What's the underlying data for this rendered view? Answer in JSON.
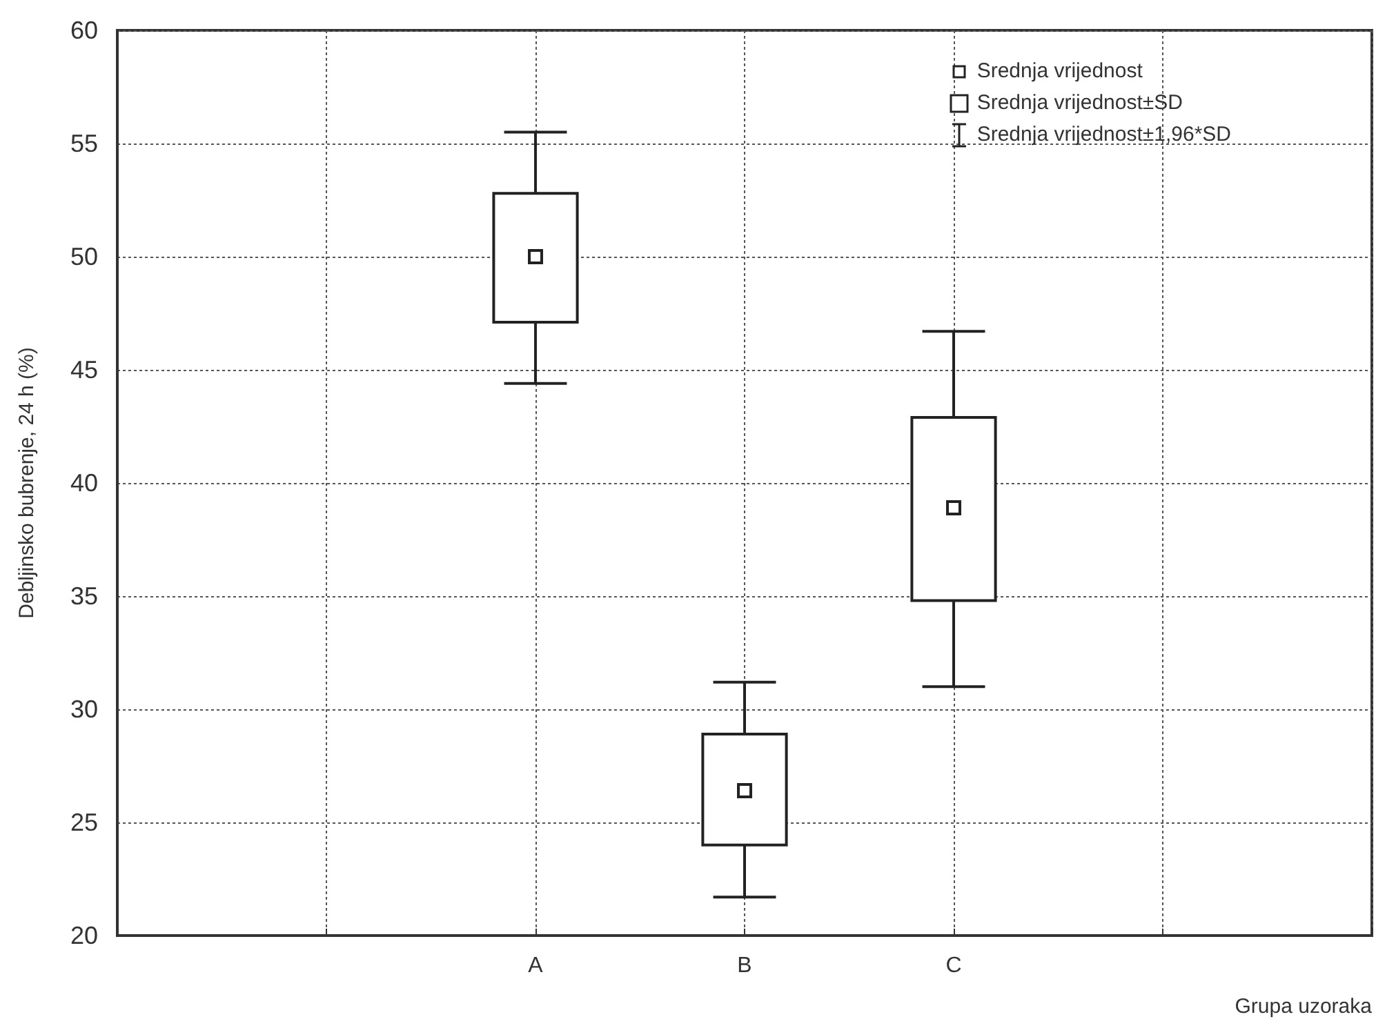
{
  "chart_data": {
    "type": "box",
    "xlabel": "Grupa uzoraka",
    "ylabel": "Debljinsko bubrenje, 24 h (%)",
    "categories": [
      null,
      null,
      "A",
      "B",
      "C",
      null,
      null
    ],
    "color": "#222222",
    "boxes": [
      null,
      null,
      {
        "low": 44.4,
        "q1": 47.1,
        "median": 50.0,
        "q3": 52.8,
        "high": 55.5
      },
      {
        "low": 21.7,
        "q1": 24.0,
        "median": 26.4,
        "q3": 28.9,
        "high": 31.2
      },
      {
        "low": 31.0,
        "q1": 34.8,
        "median": 38.9,
        "q3": 42.9,
        "high": 46.7
      },
      null,
      null
    ],
    "annotations": [
      "Srednja vrijednost",
      "Srednja vrijednost±SD",
      "Srednja vrijednost±1,96*SD"
    ],
    "ylim": [
      20,
      60
    ],
    "yticks": [
      20,
      25,
      30,
      35,
      40,
      45,
      50,
      55,
      60
    ],
    "grid": true
  }
}
